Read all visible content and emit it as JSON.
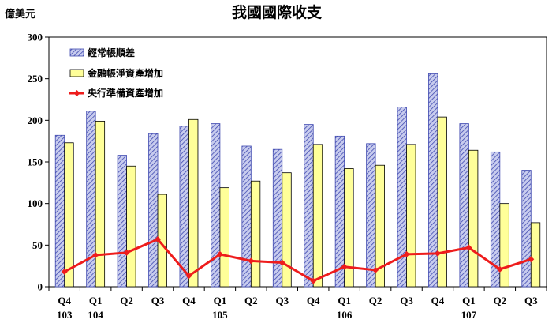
{
  "chart_data": {
    "type": "bar",
    "title": "我國國際收支",
    "unit_label": "億美元",
    "ylim": [
      0,
      300
    ],
    "yticks": [
      0,
      50,
      100,
      150,
      200,
      250,
      300
    ],
    "grid": false,
    "legend_position": "top-left",
    "categories": [
      "Q4",
      "Q1",
      "Q2",
      "Q3",
      "Q4",
      "Q1",
      "Q2",
      "Q3",
      "Q4",
      "Q1",
      "Q2",
      "Q3",
      "Q4",
      "Q1",
      "Q2",
      "Q3"
    ],
    "year_labels": [
      {
        "index": 0,
        "label": "103"
      },
      {
        "index": 1,
        "label": "104"
      },
      {
        "index": 5,
        "label": "105"
      },
      {
        "index": 9,
        "label": "106"
      },
      {
        "index": 13,
        "label": "107"
      }
    ],
    "series": [
      {
        "name": "經常帳順差",
        "kind": "bar",
        "color": "#3f49b0",
        "fill": "#c8ccee",
        "pattern": "diagonal-hatch",
        "values": [
          182,
          211,
          158,
          184,
          193,
          196,
          169,
          165,
          195,
          181,
          172,
          216,
          256,
          196,
          162,
          140
        ]
      },
      {
        "name": "金融帳淨資產增加",
        "kind": "bar",
        "color": "#000000",
        "fill": "#ffff99",
        "values": [
          173,
          199,
          145,
          111,
          201,
          119,
          127,
          137,
          171,
          142,
          146,
          171,
          204,
          164,
          100,
          77
        ]
      },
      {
        "name": "央行準備資產增加",
        "kind": "line",
        "color": "#ee1c1c",
        "values": [
          18,
          38,
          41,
          57,
          13,
          39,
          31,
          29,
          7,
          24,
          20,
          39,
          40,
          47,
          21,
          33
        ]
      }
    ]
  }
}
